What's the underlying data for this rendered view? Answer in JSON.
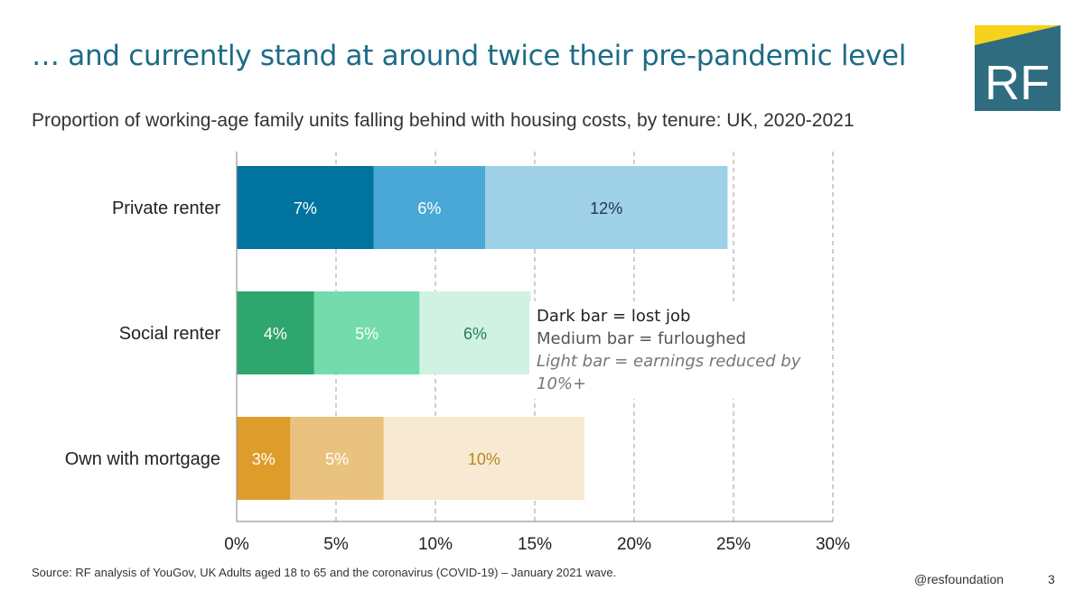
{
  "header": {
    "title": "… and currently stand at around twice their pre-pandemic level",
    "subtitle": "Proportion of working-age family units falling behind with housing costs, by tenure: UK, 2020-2021"
  },
  "logo": {
    "text": "RF",
    "colors": {
      "teal": "#2f6c80",
      "yellow": "#f5d21c"
    }
  },
  "chart_data": {
    "type": "bar",
    "orientation": "horizontal",
    "stacked": true,
    "categories": [
      "Private renter",
      "Social renter",
      "Own with mortgage"
    ],
    "series": [
      {
        "values": [
          7,
          4,
          3
        ],
        "labels": [
          "7%",
          "4%",
          "3%"
        ]
      },
      {
        "values": [
          6,
          5,
          5
        ],
        "labels": [
          "6%",
          "5%",
          "5%"
        ]
      },
      {
        "values": [
          12,
          6,
          10
        ],
        "labels": [
          "12%",
          "6%",
          "10%"
        ]
      }
    ],
    "segments_exact": [
      [
        6.9,
        5.6,
        12.2
      ],
      [
        3.9,
        5.3,
        5.6
      ],
      [
        2.7,
        4.7,
        10.1
      ]
    ],
    "colors": [
      [
        "#00739e",
        "#4aa8d6",
        "#9ed0e8"
      ],
      [
        "#2ea66d",
        "#74dbac",
        "#cff2e3"
      ],
      [
        "#de9c2b",
        "#eac280",
        "#f7e9d2"
      ]
    ],
    "label_colors": [
      [
        "#ffffff",
        "#ffffff",
        "#1a3a4a"
      ],
      [
        "#ffffff",
        "#ffffff",
        "#2a7b55"
      ],
      [
        "#ffffff",
        "#ffffff",
        "#b88a20"
      ]
    ],
    "xlim": [
      0,
      30
    ],
    "xticks": [
      0,
      5,
      10,
      15,
      20,
      25,
      30
    ],
    "xtick_labels": [
      "0%",
      "5%",
      "10%",
      "15%",
      "20%",
      "25%",
      "30%"
    ],
    "grid": "dashed vertical",
    "legend": [
      {
        "text": "Dark bar = lost job",
        "style": "dark"
      },
      {
        "text": "Medium bar = furloughed",
        "style": "medium"
      },
      {
        "text": "Light bar = earnings reduced by 10%+",
        "style": "light"
      }
    ],
    "legend_placement": "right of social renter bar"
  },
  "footer": {
    "source": "Source: RF analysis of YouGov, UK Adults aged 18 to 65 and the coronavirus (COVID-19) – January 2021 wave.",
    "handle": "@resfoundation",
    "page": "3"
  }
}
